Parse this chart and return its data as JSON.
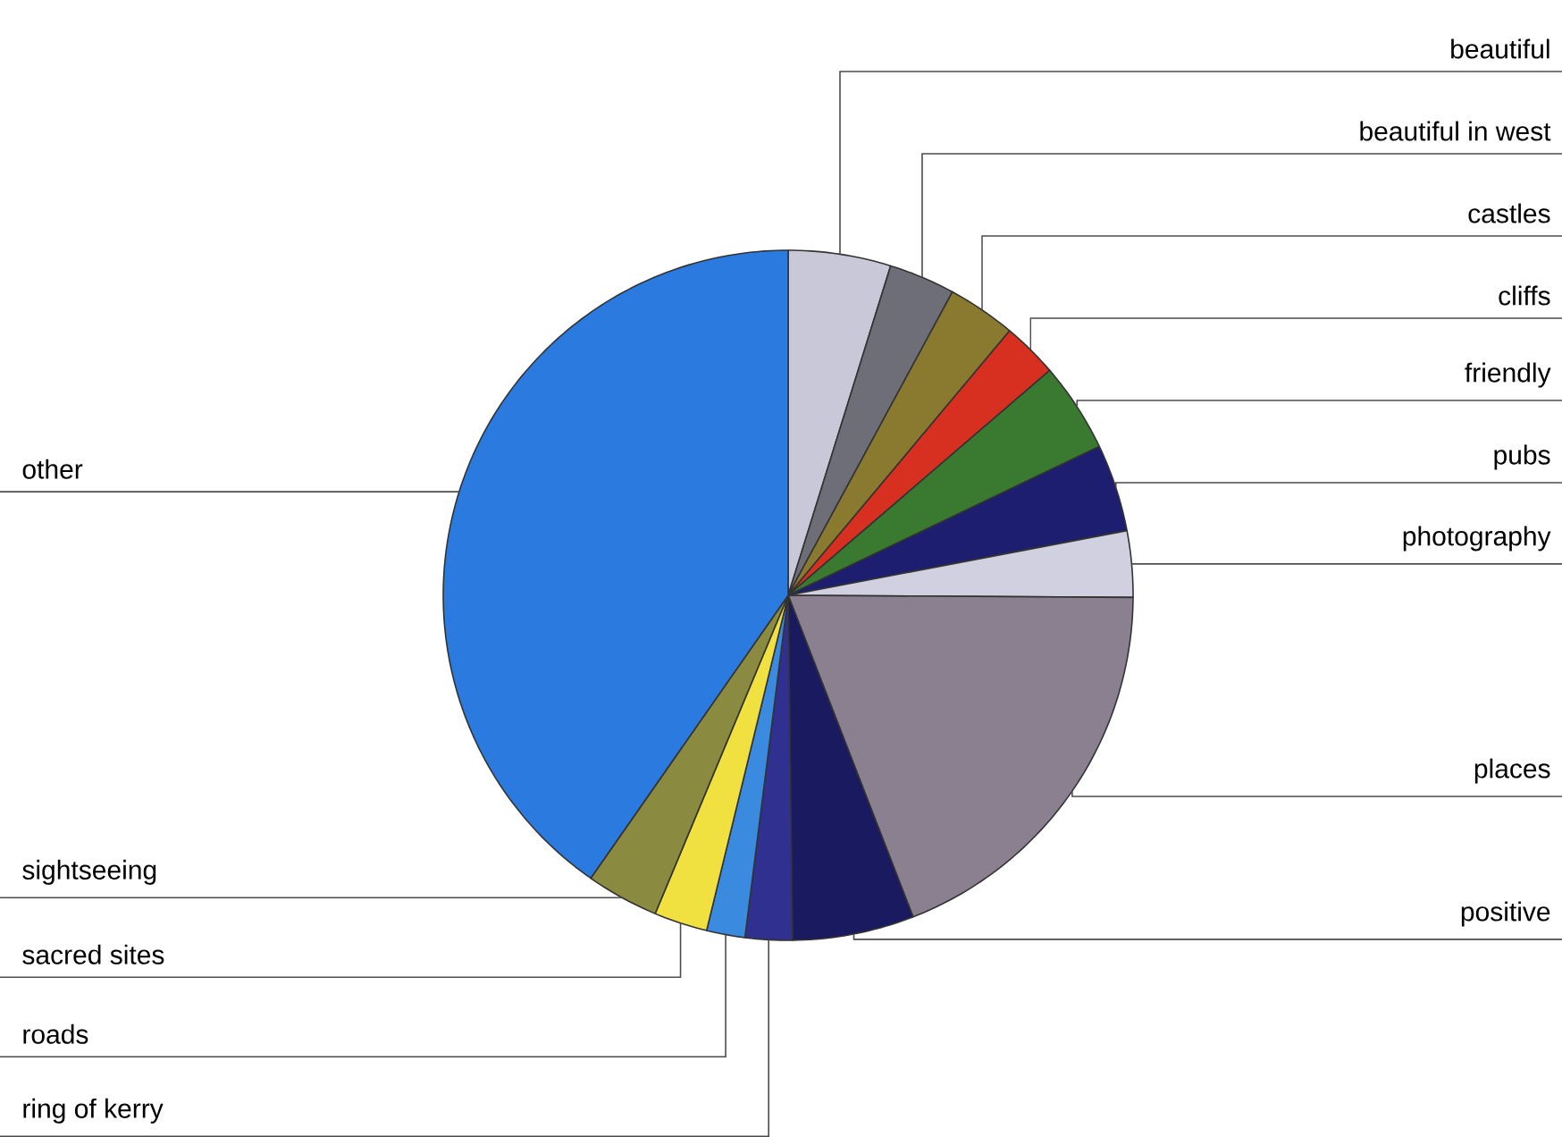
{
  "chart_data": {
    "type": "pie",
    "categories": [
      "beautiful",
      "beautiful in west",
      "castles",
      "cliffs",
      "friendly",
      "pubs",
      "photography",
      "places",
      "positive",
      "ring of kerry",
      "roads",
      "sacred sites",
      "sightseeing",
      "other"
    ],
    "values": [
      4.8,
      3.1,
      3.2,
      2.6,
      4.2,
      4.1,
      3.1,
      19.0,
      5.7,
      2.2,
      1.8,
      2.5,
      3.4,
      40.3
    ],
    "colors": [
      "#c8c8d8",
      "#6e6e78",
      "#8a7a30",
      "#d83020",
      "#3a7a30",
      "#1e1e70",
      "#d0d0e0",
      "#8a8090",
      "#1a1a60",
      "#303090",
      "#3a8ae0",
      "#f0e040",
      "#8a8a40",
      "#2a7ae0"
    ]
  }
}
